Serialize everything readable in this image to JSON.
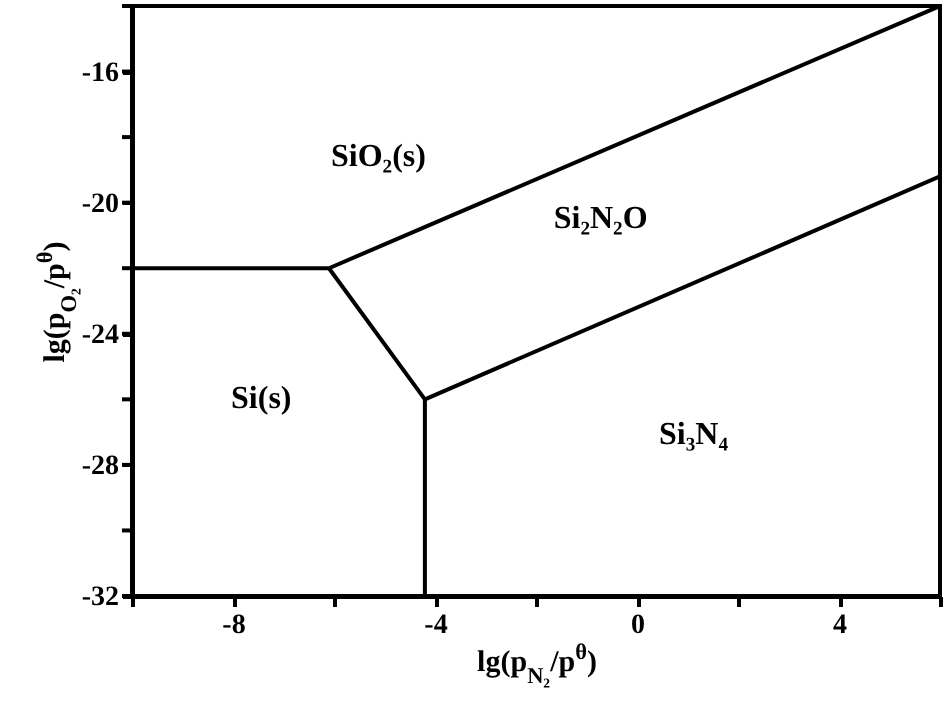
{
  "chart_data": {
    "type": "line",
    "xlabel": "lg(p$_{N₂}$/p$^{θ}$)",
    "ylabel": "lg(p$_{O₂}$/p$^{θ}$)",
    "xlim": [
      -10,
      6
    ],
    "ylim": [
      -32,
      -14
    ],
    "xticks": [
      {
        "value": -10,
        "label": null
      },
      -8,
      {
        "value": -6,
        "label": null
      },
      -4,
      {
        "value": -2,
        "label": null
      },
      0,
      {
        "value": 2,
        "label": null
      },
      4,
      {
        "value": 6,
        "label": null
      }
    ],
    "yticks": [
      -32,
      {
        "value": -30,
        "label": null
      },
      -28,
      {
        "value": -26,
        "label": null
      },
      -24,
      {
        "value": -22,
        "label": null
      },
      -20,
      {
        "value": -18,
        "label": null
      },
      -16,
      {
        "value": -14,
        "label": null
      }
    ],
    "series": [
      {
        "color": "#000000",
        "x": [
          -10,
          -6.1,
          6
        ],
        "values": [
          -22,
          -22,
          -14
        ]
      },
      {
        "color": "#000000",
        "x": [
          -6.1,
          -4.2,
          -4.2
        ],
        "values": [
          -22,
          -26,
          -32
        ]
      },
      {
        "color": "#000000",
        "x": [
          -4.2,
          6
        ],
        "values": [
          -26,
          -19.2
        ]
      }
    ],
    "annotations": [
      "SiO₂(s)",
      "Si₂N₂O",
      "Si(s)",
      "Si₃N₄"
    ]
  }
}
